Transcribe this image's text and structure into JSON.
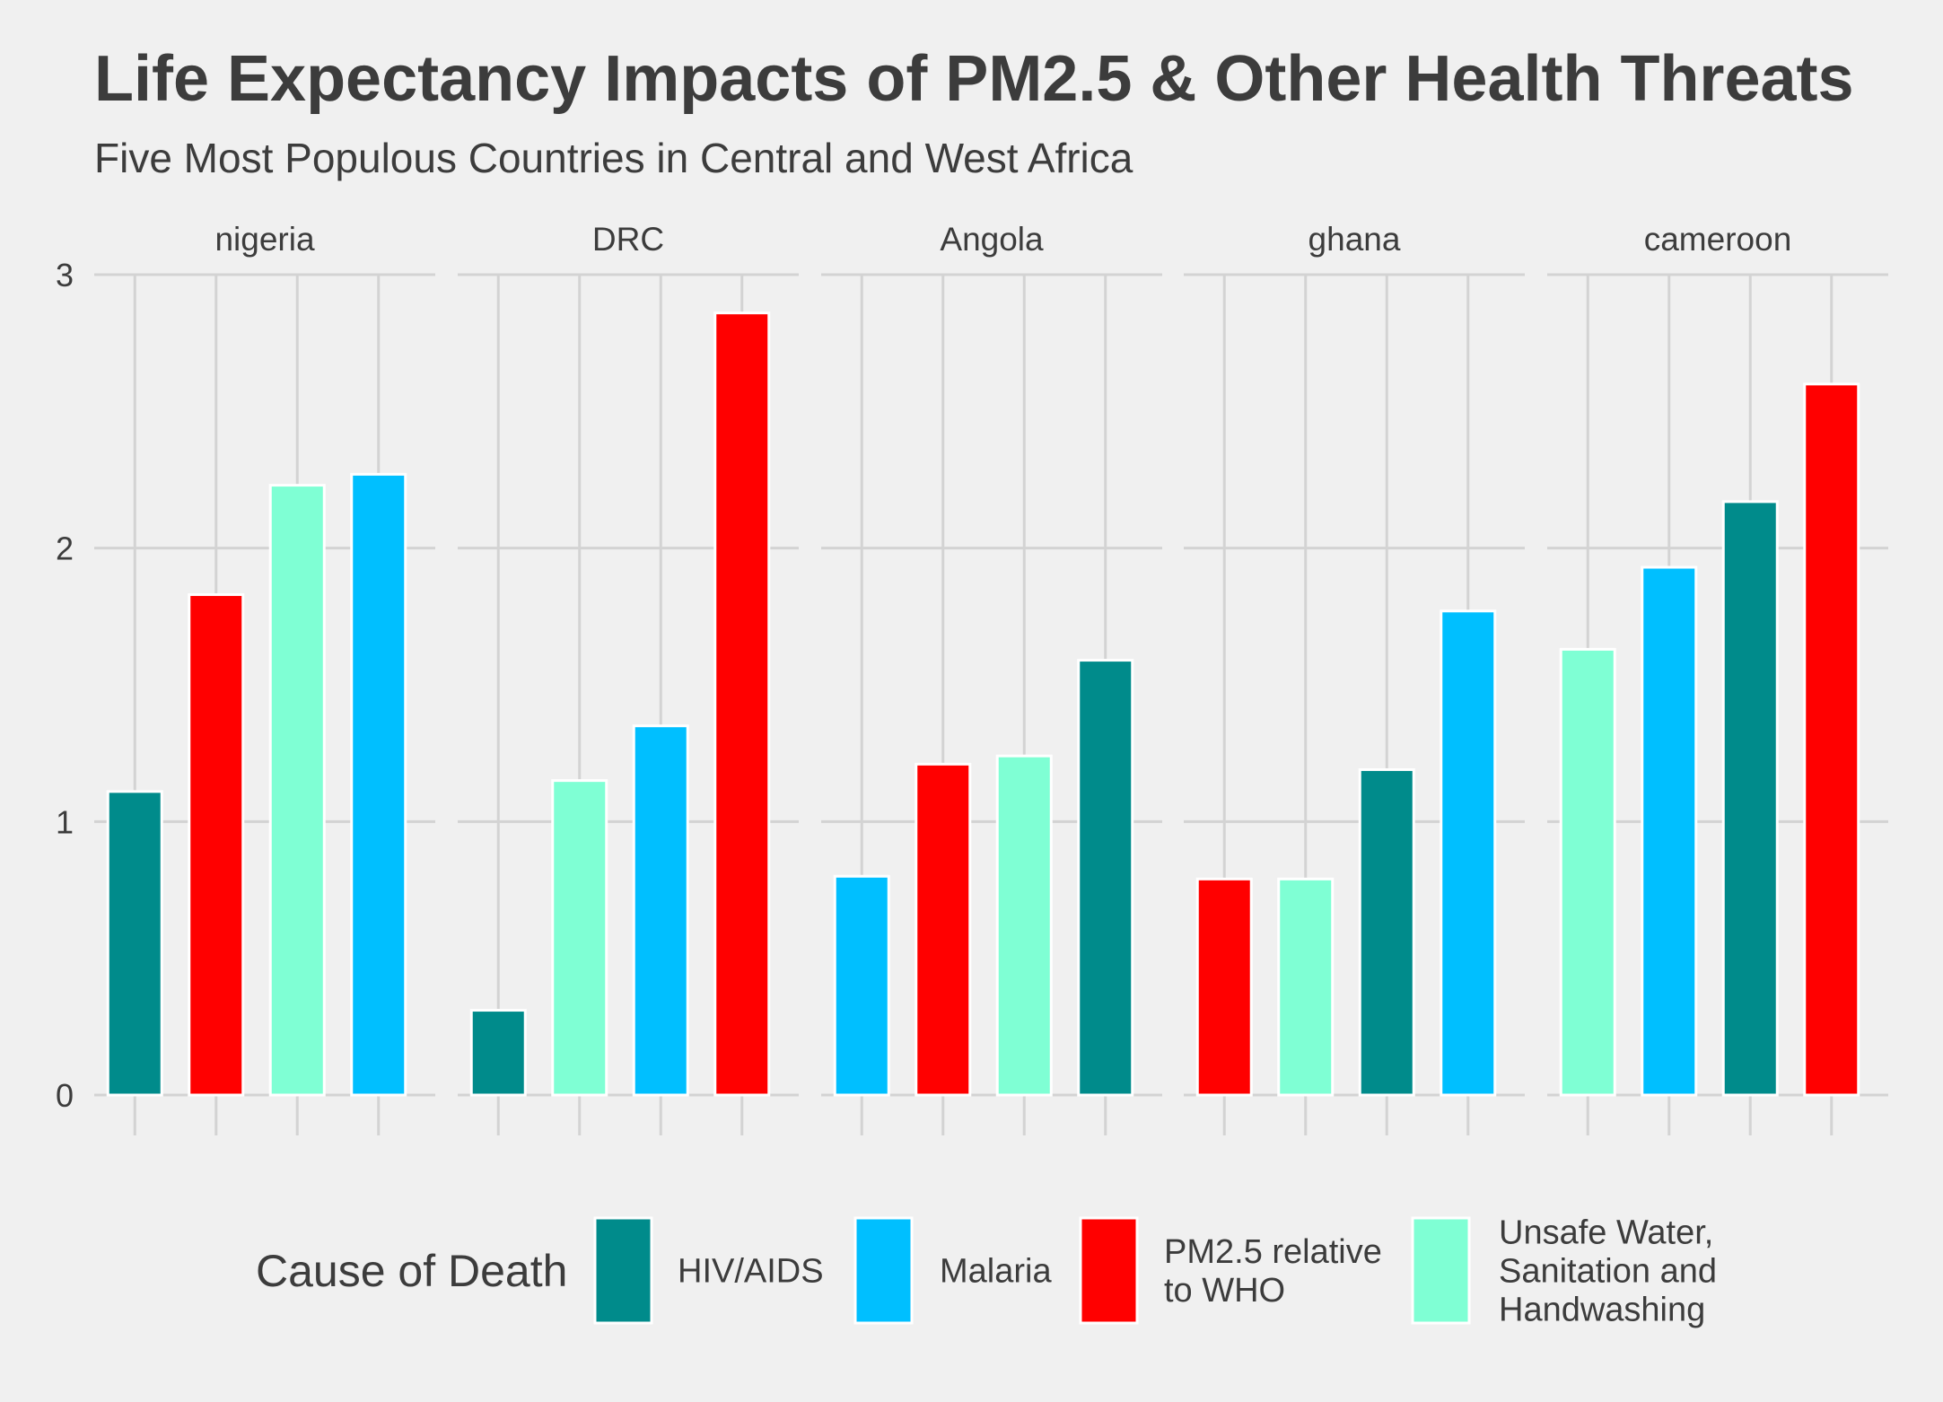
{
  "chart_data": {
    "type": "bar",
    "title": "Life Expectancy Impacts of PM2.5 & Other Health Threats",
    "subtitle": "Five Most Populous Countries in Central and West Africa",
    "xlabel": "",
    "ylabel": "",
    "ylim": [
      0,
      3
    ],
    "yticks": [
      0,
      1,
      2,
      3
    ],
    "grid": true,
    "legend_position": "bottom",
    "legend_title": "Cause of Death",
    "legend": [
      {
        "key": "hiv",
        "lines": [
          "HIV/AIDS"
        ],
        "color": "#008b8b"
      },
      {
        "key": "malaria",
        "lines": [
          "Malaria"
        ],
        "color": "#00bfff"
      },
      {
        "key": "pm25",
        "lines": [
          "PM2.5 relative",
          "to WHO"
        ],
        "color": "#ff0000"
      },
      {
        "key": "water",
        "lines": [
          "Unsafe Water,",
          "Sanitation and",
          "Handwashing"
        ],
        "color": "#7fffd4"
      }
    ],
    "panels": [
      {
        "name": "nigeria",
        "bars": [
          {
            "cause": "hiv",
            "value": 1.11
          },
          {
            "cause": "pm25",
            "value": 1.83
          },
          {
            "cause": "water",
            "value": 2.23
          },
          {
            "cause": "malaria",
            "value": 2.27
          }
        ]
      },
      {
        "name": "DRC",
        "bars": [
          {
            "cause": "hiv",
            "value": 0.31
          },
          {
            "cause": "water",
            "value": 1.15
          },
          {
            "cause": "malaria",
            "value": 1.35
          },
          {
            "cause": "pm25",
            "value": 2.86
          }
        ]
      },
      {
        "name": "Angola",
        "bars": [
          {
            "cause": "malaria",
            "value": 0.8
          },
          {
            "cause": "pm25",
            "value": 1.21
          },
          {
            "cause": "water",
            "value": 1.24
          },
          {
            "cause": "hiv",
            "value": 1.59
          }
        ]
      },
      {
        "name": "ghana",
        "bars": [
          {
            "cause": "pm25",
            "value": 0.79
          },
          {
            "cause": "water",
            "value": 0.79
          },
          {
            "cause": "hiv",
            "value": 1.19
          },
          {
            "cause": "malaria",
            "value": 1.77
          }
        ]
      },
      {
        "name": "cameroon",
        "bars": [
          {
            "cause": "water",
            "value": 1.63
          },
          {
            "cause": "malaria",
            "value": 1.93
          },
          {
            "cause": "hiv",
            "value": 2.17
          },
          {
            "cause": "pm25",
            "value": 2.6
          }
        ]
      }
    ]
  }
}
